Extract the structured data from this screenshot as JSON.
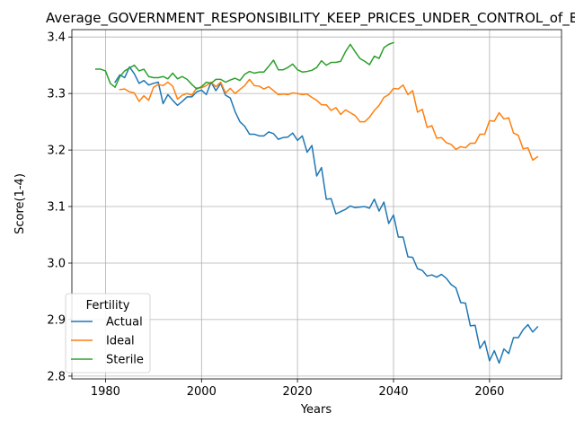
{
  "chart_data": {
    "type": "line",
    "title": "Average_GOVERNMENT_RESPONSIBILITY_KEEP_PRICES_UNDER_CONTROL_of_BP",
    "xlabel": "Years",
    "ylabel": "Score(1-4)",
    "xlim": [
      1973,
      2075
    ],
    "ylim": [
      2.795,
      3.413
    ],
    "xticks": [
      1980,
      2000,
      2020,
      2040,
      2060
    ],
    "yticks": [
      2.8,
      2.9,
      3.0,
      3.1,
      3.2,
      3.3,
      3.4
    ],
    "xtick_labels": [
      "1980",
      "2000",
      "2020",
      "2040",
      "2060"
    ],
    "ytick_labels": [
      "2.8",
      "2.9",
      "3.0",
      "3.1",
      "3.2",
      "3.3",
      "3.4"
    ],
    "grid": true,
    "legend": {
      "title": "Fertility",
      "position": "lower left"
    },
    "series": [
      {
        "name": "Actual",
        "color": "#1f77b4",
        "x": [
          1982,
          1983,
          1984,
          1985,
          1986,
          1987,
          1988,
          1989,
          1990,
          1991,
          1992,
          1993,
          1994,
          1995,
          1996,
          1997,
          1998,
          1999,
          2000,
          2001,
          2002,
          2003,
          2004,
          2005,
          2006,
          2007,
          2008,
          2009,
          2010,
          2011,
          2012,
          2013,
          2014,
          2015,
          2016,
          2017,
          2018,
          2019,
          2020,
          2021,
          2022,
          2023,
          2024,
          2025,
          2026,
          2027,
          2028,
          2029,
          2030,
          2031,
          2032,
          2033,
          2034,
          2035,
          2036,
          2037,
          2038,
          2039,
          2040,
          2041,
          2042,
          2043,
          2044,
          2045,
          2046,
          2047,
          2048,
          2049,
          2050,
          2051,
          2052,
          2053,
          2054,
          2055,
          2056,
          2057,
          2058,
          2059,
          2060,
          2061,
          2062,
          2063,
          2064,
          2065,
          2066,
          2067,
          2068,
          2069,
          2070
        ],
        "values": [
          3.32,
          3.333,
          3.328,
          3.347,
          3.335,
          3.318,
          3.323,
          3.315,
          3.318,
          3.32,
          3.282,
          3.298,
          3.288,
          3.279,
          3.286,
          3.294,
          3.294,
          3.303,
          3.306,
          3.298,
          3.32,
          3.305,
          3.318,
          3.297,
          3.292,
          3.268,
          3.25,
          3.242,
          3.228,
          3.228,
          3.225,
          3.225,
          3.232,
          3.229,
          3.219,
          3.222,
          3.223,
          3.23,
          3.217,
          3.225,
          3.196,
          3.208,
          3.154,
          3.169,
          3.113,
          3.114,
          3.087,
          3.091,
          3.095,
          3.101,
          3.098,
          3.099,
          3.1,
          3.097,
          3.113,
          3.092,
          3.108,
          3.07,
          3.085,
          3.046,
          3.046,
          3.011,
          3.01,
          2.99,
          2.987,
          2.977,
          2.979,
          2.975,
          2.98,
          2.973,
          2.962,
          2.956,
          2.93,
          2.929,
          2.889,
          2.89,
          2.849,
          2.862,
          2.827,
          2.845,
          2.823,
          2.848,
          2.84,
          2.868,
          2.868,
          2.882,
          2.891,
          2.878,
          2.887
        ]
      },
      {
        "name": "Ideal",
        "color": "#ff7f0e",
        "x": [
          1983,
          1984,
          1985,
          1986,
          1987,
          1988,
          1989,
          1990,
          1991,
          1992,
          1993,
          1994,
          1995,
          1996,
          1997,
          1998,
          1999,
          2000,
          2001,
          2002,
          2003,
          2004,
          2005,
          2006,
          2007,
          2008,
          2009,
          2010,
          2011,
          2012,
          2013,
          2014,
          2015,
          2016,
          2017,
          2018,
          2019,
          2020,
          2021,
          2022,
          2023,
          2024,
          2025,
          2026,
          2027,
          2028,
          2029,
          2030,
          2031,
          2032,
          2033,
          2034,
          2035,
          2036,
          2037,
          2038,
          2039,
          2040,
          2041,
          2042,
          2043,
          2044,
          2045,
          2046,
          2047,
          2048,
          2049,
          2050,
          2051,
          2052,
          2053,
          2054,
          2055,
          2056,
          2057,
          2058,
          2059,
          2060,
          2061,
          2062,
          2063,
          2064,
          2065,
          2066,
          2067,
          2068,
          2069,
          2070
        ],
        "values": [
          3.307,
          3.308,
          3.303,
          3.301,
          3.286,
          3.296,
          3.288,
          3.311,
          3.316,
          3.314,
          3.32,
          3.313,
          3.29,
          3.297,
          3.3,
          3.297,
          3.31,
          3.31,
          3.314,
          3.32,
          3.312,
          3.32,
          3.301,
          3.309,
          3.3,
          3.307,
          3.314,
          3.325,
          3.314,
          3.313,
          3.308,
          3.312,
          3.305,
          3.298,
          3.299,
          3.298,
          3.301,
          3.3,
          3.298,
          3.299,
          3.293,
          3.288,
          3.28,
          3.28,
          3.27,
          3.275,
          3.263,
          3.271,
          3.266,
          3.261,
          3.25,
          3.25,
          3.258,
          3.27,
          3.279,
          3.293,
          3.298,
          3.309,
          3.308,
          3.315,
          3.298,
          3.305,
          3.267,
          3.272,
          3.24,
          3.243,
          3.221,
          3.222,
          3.213,
          3.21,
          3.201,
          3.206,
          3.204,
          3.212,
          3.212,
          3.228,
          3.228,
          3.252,
          3.251,
          3.266,
          3.255,
          3.257,
          3.23,
          3.226,
          3.202,
          3.204,
          3.182,
          3.188
        ]
      },
      {
        "name": "Sterile",
        "color": "#2ca02c",
        "x": [
          1978,
          1979,
          1980,
          1981,
          1982,
          1983,
          1984,
          1985,
          1986,
          1987,
          1988,
          1989,
          1990,
          1991,
          1992,
          1993,
          1994,
          1995,
          1996,
          1997,
          1998,
          1999,
          2000,
          2001,
          2002,
          2003,
          2004,
          2005,
          2006,
          2007,
          2008,
          2009,
          2010,
          2011,
          2012,
          2013,
          2014,
          2015,
          2016,
          2017,
          2018,
          2019,
          2020,
          2021,
          2022,
          2023,
          2024,
          2025,
          2026,
          2027,
          2028,
          2029,
          2030,
          2031,
          2032,
          2033,
          2034,
          2035,
          2036,
          2037,
          2038,
          2039,
          2040
        ],
        "values": [
          3.343,
          3.343,
          3.34,
          3.318,
          3.311,
          3.33,
          3.34,
          3.345,
          3.35,
          3.34,
          3.343,
          3.33,
          3.328,
          3.328,
          3.33,
          3.326,
          3.336,
          3.326,
          3.33,
          3.325,
          3.316,
          3.308,
          3.312,
          3.32,
          3.318,
          3.325,
          3.325,
          3.32,
          3.324,
          3.327,
          3.323,
          3.334,
          3.339,
          3.336,
          3.338,
          3.338,
          3.348,
          3.359,
          3.342,
          3.342,
          3.346,
          3.352,
          3.342,
          3.338,
          3.339,
          3.341,
          3.346,
          3.358,
          3.35,
          3.355,
          3.355,
          3.357,
          3.374,
          3.387,
          3.374,
          3.362,
          3.357,
          3.351,
          3.366,
          3.362,
          3.381,
          3.387,
          3.39
        ]
      }
    ]
  }
}
